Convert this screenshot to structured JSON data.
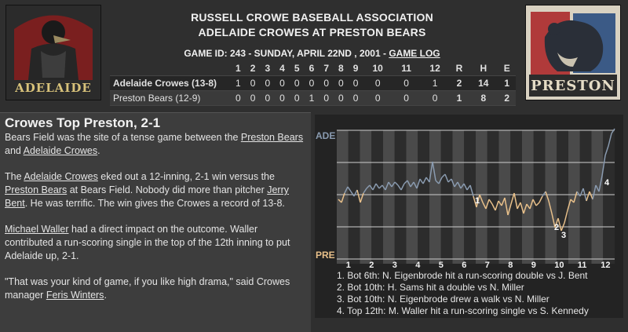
{
  "logos": {
    "left_text": "ADELAIDE",
    "right_text": "PRESTON"
  },
  "header": {
    "association": "RUSSELL CROWE BASEBALL ASSOCIATION",
    "matchup": "ADELAIDE CROWES AT PRESTON BEARS",
    "game_id": "GAME ID: 243 - SUNDAY, APRIL 22ND , 2001 - ",
    "game_log": "GAME LOG"
  },
  "linescore": {
    "columns": [
      "1",
      "2",
      "3",
      "4",
      "5",
      "6",
      "7",
      "8",
      "9",
      "10",
      "11",
      "12",
      "R",
      "H",
      "E"
    ],
    "rows": [
      {
        "team": "Adelaide Crowes (13-8)",
        "values": [
          "1",
          "0",
          "0",
          "0",
          "0",
          "0",
          "0",
          "0",
          "0",
          "0",
          "0",
          "1",
          "2",
          "14",
          "1"
        ]
      },
      {
        "team": "Preston Bears (12-9)",
        "values": [
          "0",
          "0",
          "0",
          "0",
          "0",
          "1",
          "0",
          "0",
          "0",
          "0",
          "0",
          "0",
          "1",
          "8",
          "2"
        ]
      }
    ]
  },
  "story": {
    "headline": "Crowes Top Preston, 2-1",
    "p1": {
      "a": "Bears Field was the site of a tense game between the ",
      "l1": "Preston Bears",
      "b": " and ",
      "l2": "Adelaide Crowes",
      "c": "."
    },
    "p2": {
      "a": "The ",
      "l1": "Adelaide Crowes",
      "b": " eked out a 12-inning, 2-1 win versus the ",
      "l2": "Preston Bears",
      "c": " at Bears Field. Nobody did more than pitcher ",
      "l3": "Jerry Bent",
      "d": ". He was terrific. The win gives the Crowes a record of 13-8."
    },
    "p3": {
      "l1": "Michael Waller",
      "a": " had a direct impact on the outcome. Waller contributed a run-scoring single in the top of the 12th inning to put Adelaide up, 2-1."
    },
    "p4": {
      "a": "\"That was your kind of game, if you like high drama,\" said Crowes manager ",
      "l1": "Feris Winters",
      "b": "."
    }
  },
  "chart": {
    "top_label": "ADE",
    "bottom_label": "PRE",
    "innings": [
      "1",
      "2",
      "3",
      "4",
      "5",
      "6",
      "7",
      "8",
      "9",
      "10",
      "11",
      "12"
    ],
    "colors": {
      "ade": "#8a9bb0",
      "pre": "#e8c08a"
    },
    "markers": [
      {
        "label": "1"
      },
      {
        "label": "2"
      },
      {
        "label": "3"
      },
      {
        "label": "4"
      }
    ],
    "events": [
      "1. Bot 6th: N. Eigenbrode hit a run-scoring double vs J. Bent",
      "2. Bot 10th: H. Sams hit a double vs N. Miller",
      "3. Bot 10th: N. Eigenbrode drew a walk vs N. Miller",
      "4. Top 12th: M. Waller hit a run-scoring single vs S. Kennedy"
    ]
  }
}
